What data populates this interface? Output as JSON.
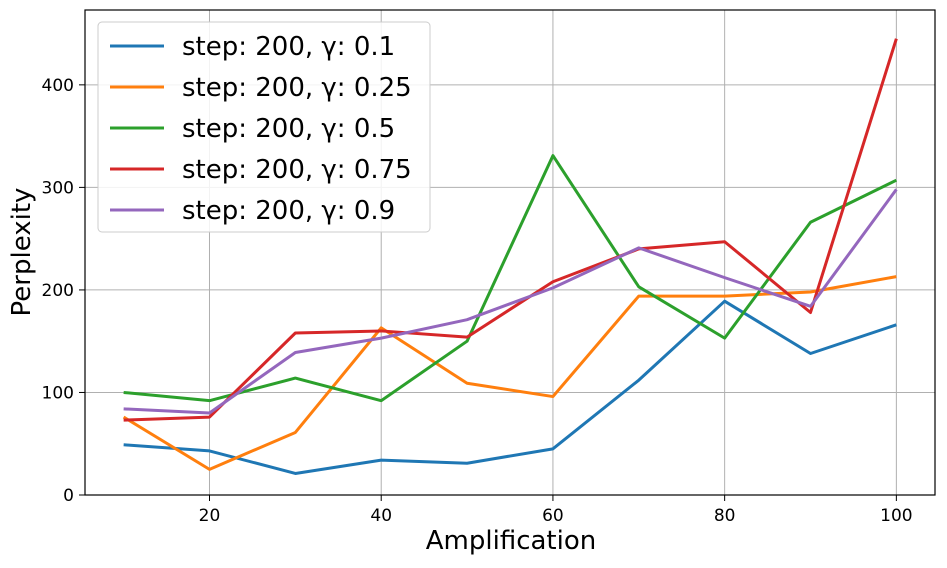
{
  "chart_data": {
    "type": "line",
    "title": "",
    "xlabel": "Amplification",
    "ylabel": "Perplexity",
    "xlim": [
      5.5,
      104.5
    ],
    "ylim": [
      0,
      473
    ],
    "x_ticks": [
      20,
      40,
      60,
      80,
      100
    ],
    "y_ticks": [
      0,
      100,
      200,
      300,
      400
    ],
    "grid": true,
    "legend_position": "top-left",
    "x": [
      10,
      20,
      30,
      40,
      50,
      60,
      70,
      80,
      90,
      100
    ],
    "series": [
      {
        "name": "step: 200, γ: 0.1",
        "color": "#1f77b4",
        "values": [
          49,
          43,
          21,
          34,
          31,
          45,
          112,
          189,
          138,
          166
        ]
      },
      {
        "name": "step: 200, γ: 0.25",
        "color": "#ff7f0e",
        "values": [
          76,
          25,
          61,
          163,
          109,
          96,
          194,
          194,
          198,
          213
        ]
      },
      {
        "name": "step: 200, γ: 0.5",
        "color": "#2ca02c",
        "values": [
          100,
          92,
          114,
          92,
          150,
          331,
          203,
          153,
          266,
          307
        ]
      },
      {
        "name": "step: 200, γ: 0.75",
        "color": "#d62728",
        "values": [
          73,
          76,
          158,
          160,
          154,
          208,
          240,
          247,
          178,
          445
        ]
      },
      {
        "name": "step: 200, γ: 0.9",
        "color": "#9467bd",
        "values": [
          84,
          80,
          139,
          153,
          171,
          202,
          241,
          212,
          184,
          298
        ]
      }
    ]
  }
}
